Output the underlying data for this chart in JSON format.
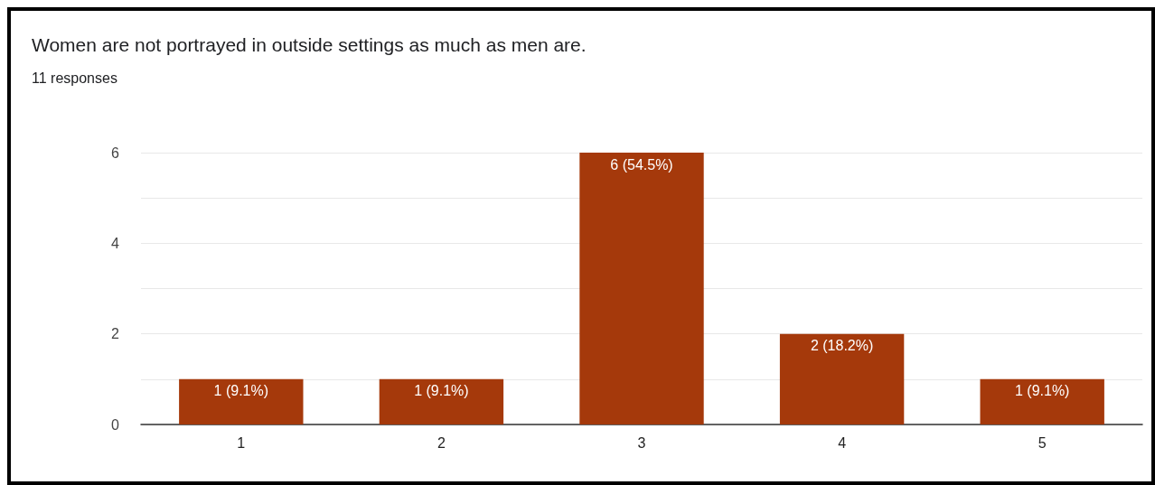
{
  "chart_data": {
    "type": "bar",
    "title": "Women are not portrayed in outside settings as much as men are.",
    "subtitle": "11 responses",
    "categories": [
      "1",
      "2",
      "3",
      "4",
      "5"
    ],
    "values": [
      1,
      1,
      6,
      2,
      1
    ],
    "value_labels": [
      "1 (9.1%)",
      "1 (9.1%)",
      "6 (54.5%)",
      "2 (18.2%)",
      "1 (9.1%)"
    ],
    "color": "#a5390b",
    "ylim": [
      0,
      6
    ],
    "yticks": [
      0,
      {
        "value": 1,
        "label": null
      },
      2,
      {
        "value": 3,
        "label": null
      },
      4,
      {
        "value": 5,
        "label": null
      },
      6
    ],
    "grid": "y"
  }
}
